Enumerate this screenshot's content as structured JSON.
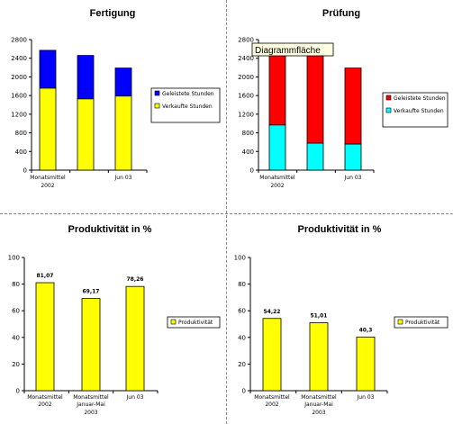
{
  "chart_data": [
    {
      "type": "bar",
      "stacked": true,
      "title": "Fertigung",
      "ylim": [
        0,
        2800
      ],
      "yticks": [
        "0",
        "400",
        "800",
        "1200",
        "1600",
        "2000",
        "2400",
        "2800"
      ],
      "categories": [
        [
          "Monatsmittel",
          "2002"
        ],
        [
          ""
        ],
        [
          "Jun 03"
        ]
      ],
      "series": [
        {
          "name": "Verkaufte Stunden",
          "color": "#ffff00",
          "values": [
            1760,
            1530,
            1590
          ]
        },
        {
          "name": "Geleistete Stunden",
          "color": "#0000ff",
          "values": [
            810,
            930,
            600
          ]
        }
      ],
      "legend_order": [
        1,
        0
      ]
    },
    {
      "type": "bar",
      "stacked": true,
      "title": "Prüfung",
      "tooltip": "Diagrammfläche",
      "ylim": [
        0,
        2800
      ],
      "yticks": [
        "0",
        "400",
        "800",
        "1200",
        "1600",
        "2000",
        "2400",
        "2800"
      ],
      "categories": [
        [
          "Monatsmittel",
          "2002"
        ],
        [
          ""
        ],
        [
          "Jun 03"
        ]
      ],
      "series": [
        {
          "name": "Verkaufte Stunden",
          "color": "#00ffff",
          "values": [
            970,
            580,
            560
          ]
        },
        {
          "name": "Geleistete Stunden",
          "color": "#ff0000",
          "values": [
            1610,
            1900,
            1630
          ]
        }
      ],
      "legend_order": [
        1,
        0
      ]
    },
    {
      "type": "bar",
      "title": "Produktivität in %",
      "ylim": [
        0,
        100
      ],
      "yticks": [
        "0",
        "20",
        "40",
        "60",
        "80",
        "100"
      ],
      "categories": [
        [
          "Monatsmittel",
          "2002"
        ],
        [
          "Monatsmittel",
          "Januar-Mai",
          "2003"
        ],
        [
          "Jun 03"
        ]
      ],
      "series": [
        {
          "name": "Produktivität",
          "color": "#ffff00",
          "values": [
            81.07,
            69.17,
            78.26
          ],
          "labels": [
            "81,07",
            "69,17",
            "78,26"
          ]
        }
      ],
      "legend_order": [
        0
      ]
    },
    {
      "type": "bar",
      "title": "Produktivität in %",
      "ylim": [
        0,
        100
      ],
      "yticks": [
        "0",
        "20",
        "40",
        "60",
        "80",
        "100"
      ],
      "categories": [
        [
          "Monatsmittel",
          "2002"
        ],
        [
          "Monatsmittel",
          "Januar-Mai",
          "2003"
        ],
        [
          "Jun 03"
        ]
      ],
      "series": [
        {
          "name": "Produktivität",
          "color": "#ffff00",
          "values": [
            54.22,
            51.01,
            40.3
          ],
          "labels": [
            "54,22",
            "51,01",
            "40,3"
          ]
        }
      ],
      "legend_order": [
        0
      ]
    }
  ]
}
